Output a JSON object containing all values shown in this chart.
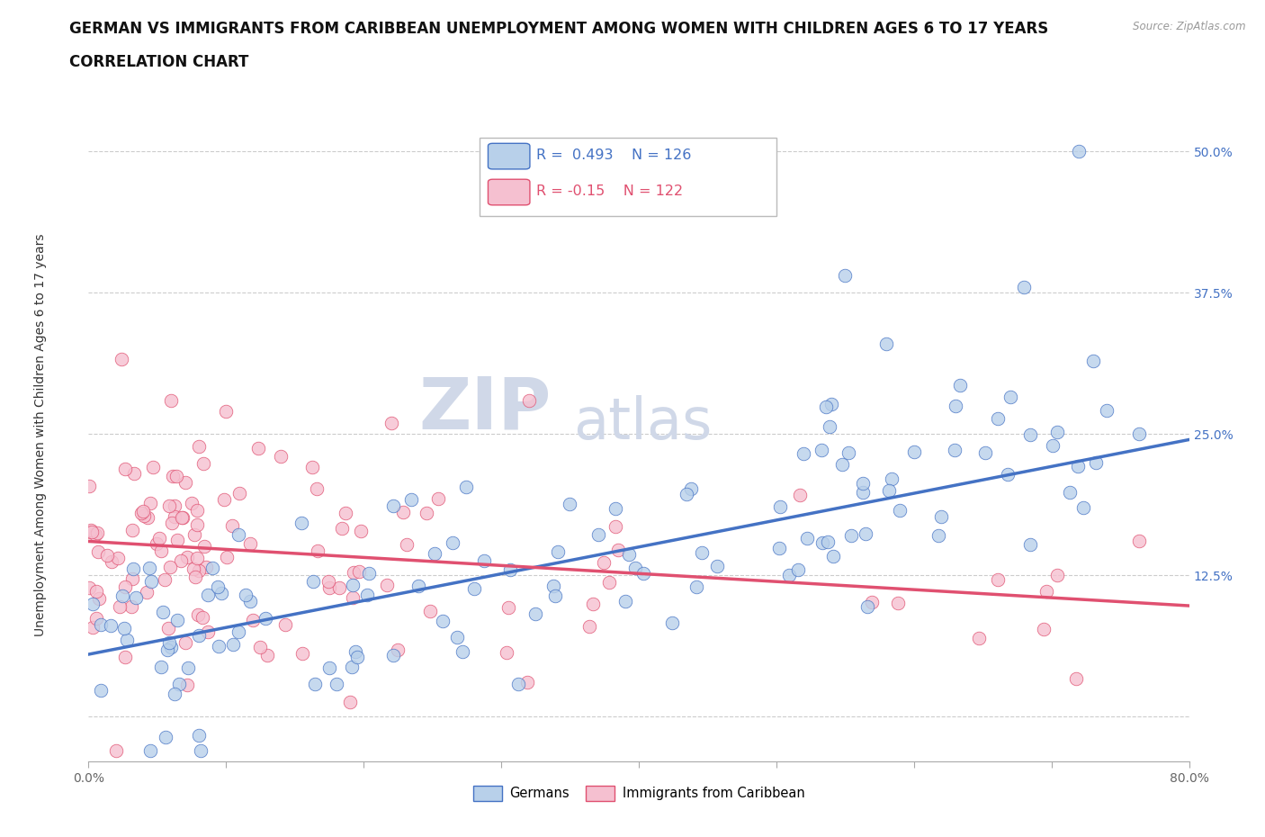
{
  "title_line1": "GERMAN VS IMMIGRANTS FROM CARIBBEAN UNEMPLOYMENT AMONG WOMEN WITH CHILDREN AGES 6 TO 17 YEARS",
  "title_line2": "CORRELATION CHART",
  "source": "Source: ZipAtlas.com",
  "ylabel": "Unemployment Among Women with Children Ages 6 to 17 years",
  "xlim": [
    0.0,
    0.8
  ],
  "ylim": [
    -0.04,
    0.56
  ],
  "xticks": [
    0.0,
    0.1,
    0.2,
    0.3,
    0.4,
    0.5,
    0.6,
    0.7,
    0.8
  ],
  "xticklabels": [
    "0.0%",
    "",
    "",
    "",
    "",
    "",
    "",
    "",
    "80.0%"
  ],
  "ytick_positions": [
    0.0,
    0.125,
    0.25,
    0.375,
    0.5
  ],
  "ytick_labels": [
    "",
    "12.5%",
    "25.0%",
    "37.5%",
    "50.0%"
  ],
  "grid_color": "#cccccc",
  "background_color": "#ffffff",
  "watermark_ZIP": "ZIP",
  "watermark_atlas": "atlas",
  "watermark_color": "#d0d8e8",
  "r_german": 0.493,
  "n_german": 126,
  "r_caribbean": -0.15,
  "n_caribbean": 122,
  "german_color": "#b8d0ea",
  "caribbean_color": "#f5c0d0",
  "german_line_color": "#4472c4",
  "caribbean_line_color": "#e05070",
  "legend_german": "Germans",
  "legend_caribbean": "Immigrants from Caribbean",
  "title_fontsize": 12,
  "axis_label_fontsize": 10,
  "tick_fontsize": 10,
  "german_trend_start": 0.055,
  "german_trend_end": 0.245,
  "caribbean_trend_start": 0.155,
  "caribbean_trend_end": 0.098
}
